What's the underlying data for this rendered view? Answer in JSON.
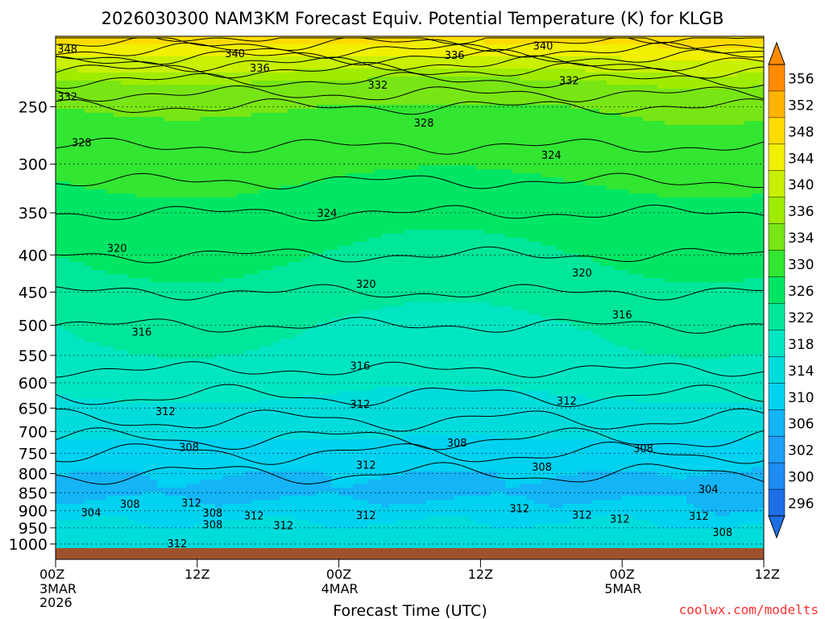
{
  "chart_data": {
    "type": "heatmap",
    "title": "2026030300 NAM3KM Forecast Equiv. Potential Temperature (K) for KLGB",
    "xlabel": "Forecast Time (UTC)",
    "ylabel": "",
    "watermark": "coolwx.com/modelts",
    "x_range_hours": [
      0,
      60
    ],
    "x_ticks": [
      {
        "hour": 0,
        "label": "00Z",
        "sub1": "3MAR",
        "sub2": "2026"
      },
      {
        "hour": 12,
        "label": "12Z",
        "sub1": "",
        "sub2": ""
      },
      {
        "hour": 24,
        "label": "00Z",
        "sub1": "4MAR",
        "sub2": ""
      },
      {
        "hour": 36,
        "label": "12Z",
        "sub1": "",
        "sub2": ""
      },
      {
        "hour": 48,
        "label": "00Z",
        "sub1": "5MAR",
        "sub2": ""
      },
      {
        "hour": 60,
        "label": "12Z",
        "sub1": "",
        "sub2": ""
      }
    ],
    "y_pressure_range_hpa": [
      1013,
      200
    ],
    "y_ticks": [
      250,
      300,
      350,
      400,
      450,
      500,
      550,
      600,
      650,
      700,
      750,
      800,
      850,
      900,
      950,
      1000
    ],
    "colorbar": {
      "ticks": [
        296,
        300,
        302,
        306,
        310,
        314,
        318,
        322,
        326,
        330,
        334,
        336,
        340,
        344,
        348,
        352,
        356
      ],
      "bands": [
        {
          "from": 294,
          "to": 298,
          "color": "#1e6ee6"
        },
        {
          "from": 298,
          "to": 300,
          "color": "#1e8cf0"
        },
        {
          "from": 300,
          "to": 302,
          "color": "#1ea0f5"
        },
        {
          "from": 302,
          "to": 306,
          "color": "#14b4f5"
        },
        {
          "from": 306,
          "to": 310,
          "color": "#00d2f0"
        },
        {
          "from": 310,
          "to": 314,
          "color": "#00dcdc"
        },
        {
          "from": 314,
          "to": 318,
          "color": "#00e6c3"
        },
        {
          "from": 318,
          "to": 322,
          "color": "#00e69b"
        },
        {
          "from": 322,
          "to": 326,
          "color": "#00e664"
        },
        {
          "from": 326,
          "to": 330,
          "color": "#32e632"
        },
        {
          "from": 330,
          "to": 334,
          "color": "#78e614"
        },
        {
          "from": 334,
          "to": 336,
          "color": "#a0ec00"
        },
        {
          "from": 336,
          "to": 340,
          "color": "#c8f000"
        },
        {
          "from": 340,
          "to": 344,
          "color": "#f0f000"
        },
        {
          "from": 344,
          "to": 348,
          "color": "#ffdc00"
        },
        {
          "from": 348,
          "to": 352,
          "color": "#ffb400"
        },
        {
          "from": 352,
          "to": 358,
          "color": "#ff8c00"
        }
      ]
    },
    "contour_interval_K": 2,
    "theta_e_profile": [
      {
        "p": 1000,
        "theta_e": 313
      },
      {
        "p": 950,
        "theta_e": 311
      },
      {
        "p": 900,
        "theta_e": 308
      },
      {
        "p": 850,
        "theta_e": 305
      },
      {
        "p": 800,
        "theta_e": 306
      },
      {
        "p": 750,
        "theta_e": 308
      },
      {
        "p": 700,
        "theta_e": 311
      },
      {
        "p": 650,
        "theta_e": 313
      },
      {
        "p": 600,
        "theta_e": 315
      },
      {
        "p": 550,
        "theta_e": 317
      },
      {
        "p": 500,
        "theta_e": 318
      },
      {
        "p": 450,
        "theta_e": 320
      },
      {
        "p": 400,
        "theta_e": 322
      },
      {
        "p": 350,
        "theta_e": 324
      },
      {
        "p": 300,
        "theta_e": 327
      },
      {
        "p": 250,
        "theta_e": 330
      },
      {
        "p": 225,
        "theta_e": 335
      },
      {
        "p": 200,
        "theta_e": 346
      }
    ],
    "contour_labels": [
      {
        "value": "348",
        "hour": 1.0,
        "p": 208
      },
      {
        "value": "340",
        "hour": 15.2,
        "p": 211
      },
      {
        "value": "336",
        "hour": 17.3,
        "p": 221
      },
      {
        "value": "336",
        "hour": 33.8,
        "p": 212
      },
      {
        "value": "340",
        "hour": 41.3,
        "p": 206
      },
      {
        "value": "332",
        "hour": 1.0,
        "p": 242
      },
      {
        "value": "332",
        "hour": 27.3,
        "p": 233
      },
      {
        "value": "332",
        "hour": 43.5,
        "p": 230
      },
      {
        "value": "328",
        "hour": 31.2,
        "p": 263
      },
      {
        "value": "328",
        "hour": 2.2,
        "p": 280
      },
      {
        "value": "324",
        "hour": 42.0,
        "p": 291
      },
      {
        "value": "324",
        "hour": 23.0,
        "p": 350
      },
      {
        "value": "320",
        "hour": 5.2,
        "p": 391
      },
      {
        "value": "320",
        "hour": 44.6,
        "p": 423
      },
      {
        "value": "320",
        "hour": 26.3,
        "p": 438
      },
      {
        "value": "316",
        "hour": 48.0,
        "p": 483
      },
      {
        "value": "316",
        "hour": 7.3,
        "p": 510
      },
      {
        "value": "316",
        "hour": 25.8,
        "p": 568
      },
      {
        "value": "312",
        "hour": 43.3,
        "p": 635
      },
      {
        "value": "312",
        "hour": 25.8,
        "p": 641
      },
      {
        "value": "312",
        "hour": 9.3,
        "p": 656
      },
      {
        "value": "308",
        "hour": 34.0,
        "p": 725
      },
      {
        "value": "308",
        "hour": 11.3,
        "p": 735
      },
      {
        "value": "308",
        "hour": 49.8,
        "p": 738
      },
      {
        "value": "312",
        "hour": 26.3,
        "p": 778
      },
      {
        "value": "308",
        "hour": 41.2,
        "p": 783
      },
      {
        "value": "304",
        "hour": 55.3,
        "p": 840
      },
      {
        "value": "308",
        "hour": 6.3,
        "p": 880
      },
      {
        "value": "312",
        "hour": 11.5,
        "p": 877
      },
      {
        "value": "312",
        "hour": 39.3,
        "p": 893
      },
      {
        "value": "304",
        "hour": 3.0,
        "p": 904
      },
      {
        "value": "308",
        "hour": 13.3,
        "p": 905
      },
      {
        "value": "312",
        "hour": 16.8,
        "p": 913
      },
      {
        "value": "312",
        "hour": 26.3,
        "p": 912
      },
      {
        "value": "312",
        "hour": 44.6,
        "p": 911
      },
      {
        "value": "312",
        "hour": 47.8,
        "p": 923
      },
      {
        "value": "312",
        "hour": 54.5,
        "p": 915
      },
      {
        "value": "308",
        "hour": 13.3,
        "p": 940
      },
      {
        "value": "312",
        "hour": 19.3,
        "p": 942
      },
      {
        "value": "308",
        "hour": 56.5,
        "p": 962
      },
      {
        "value": "312",
        "hour": 10.3,
        "p": 998
      }
    ]
  }
}
